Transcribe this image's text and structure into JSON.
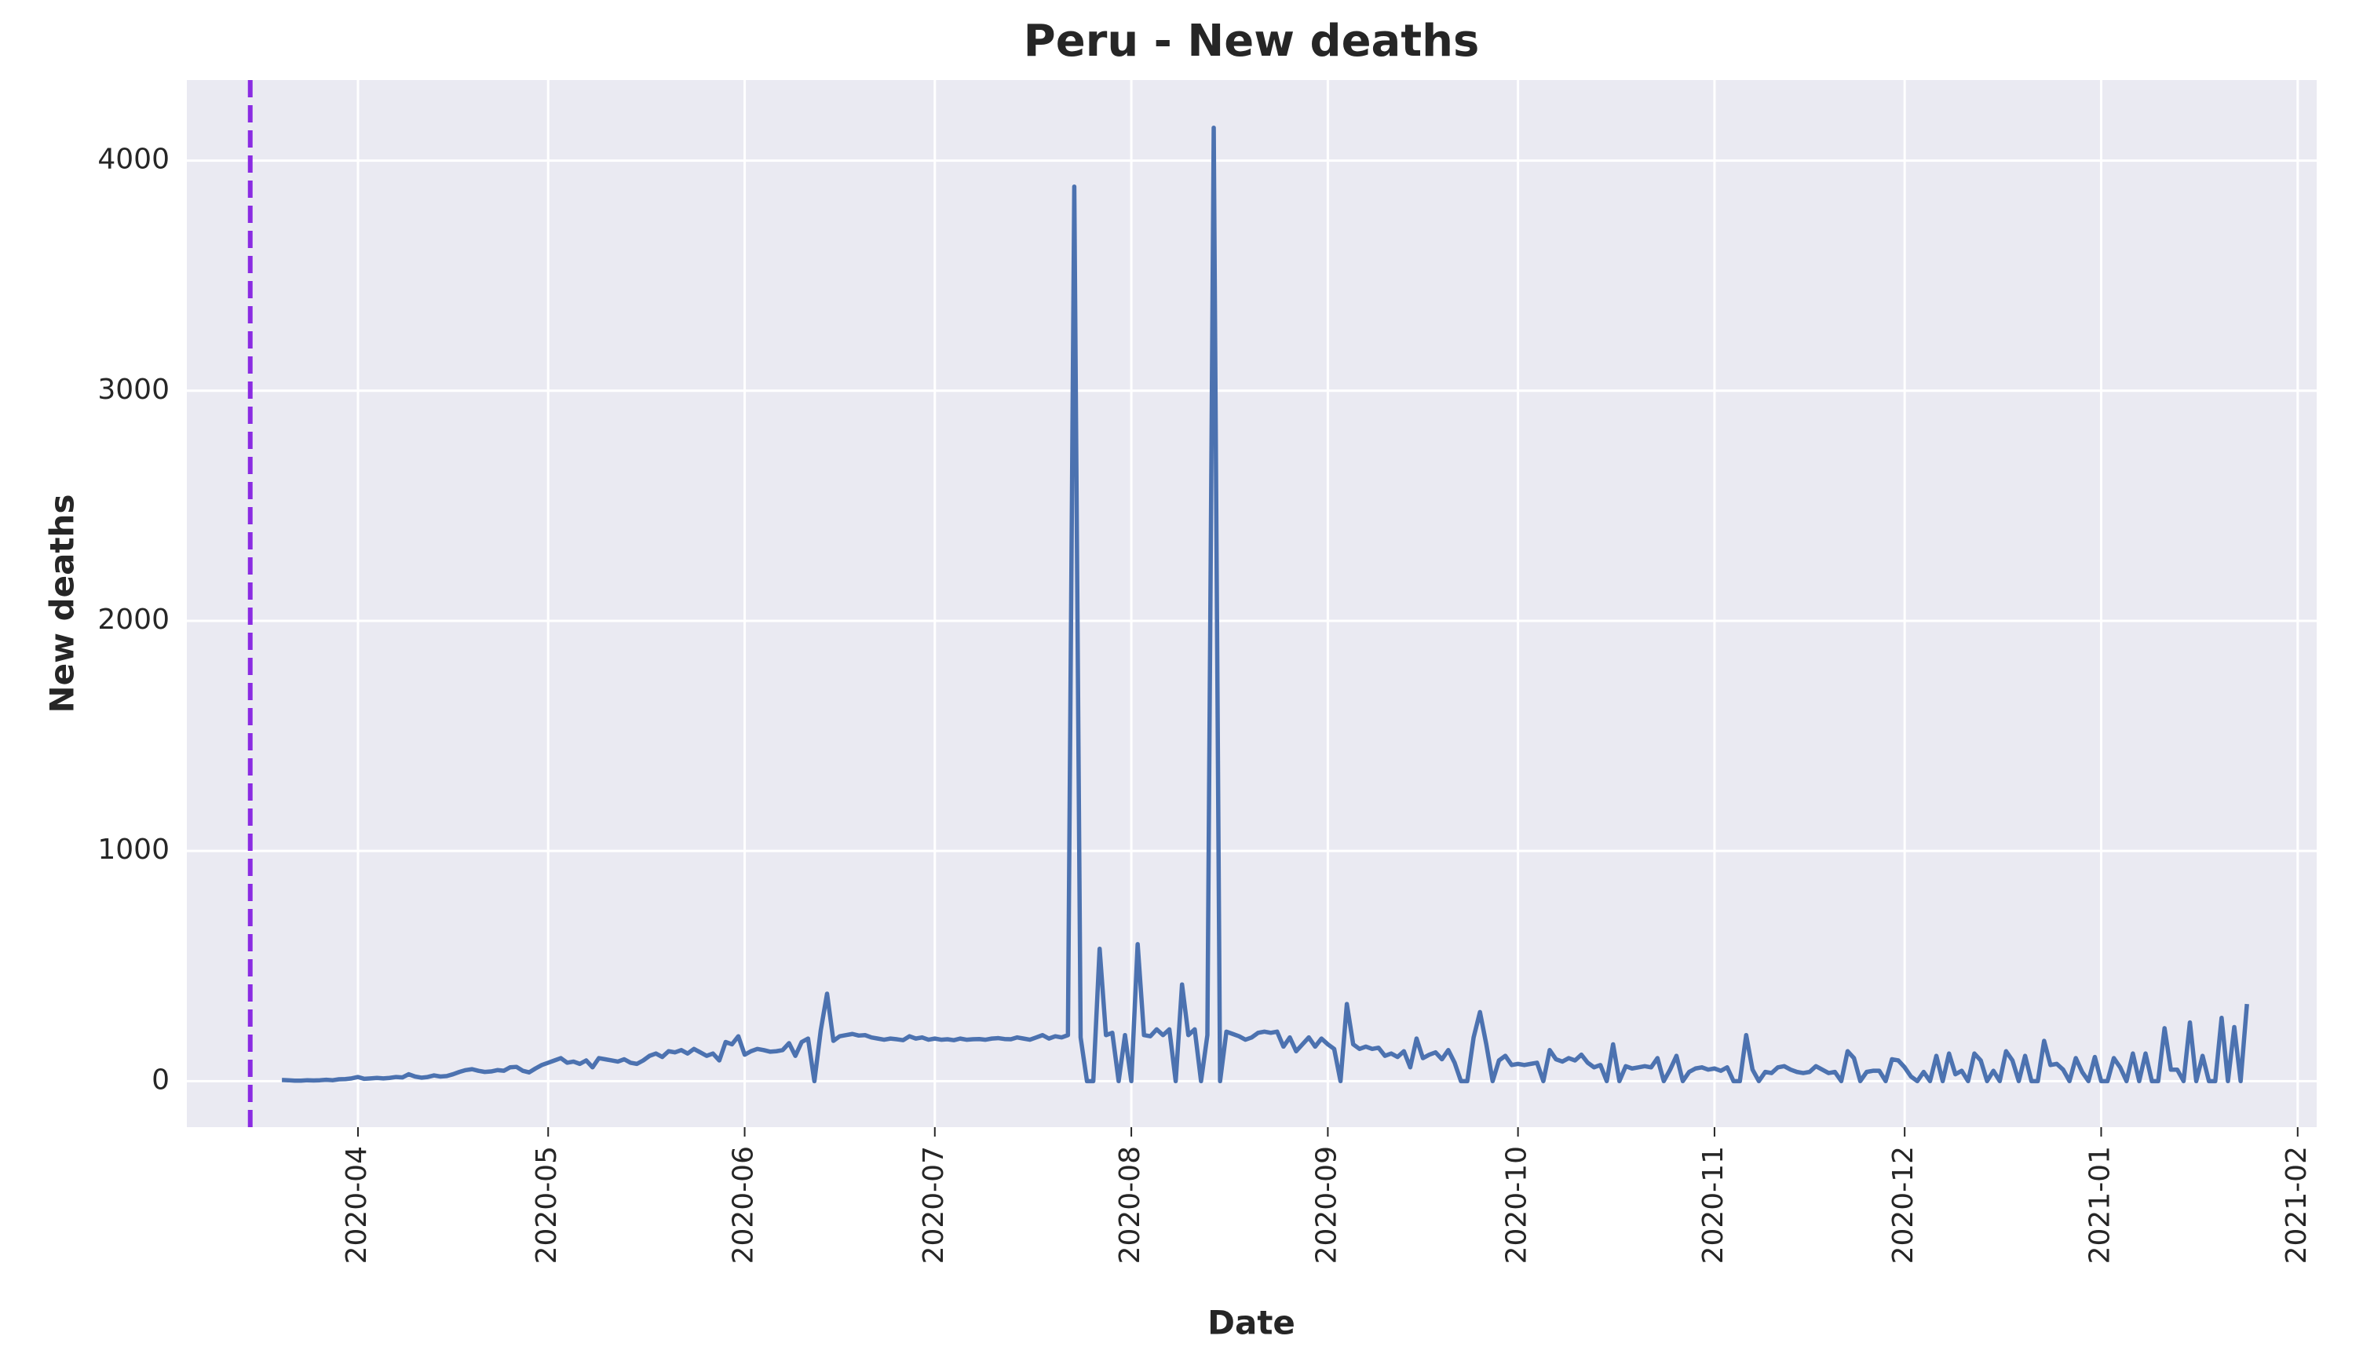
{
  "chart_data": {
    "type": "line",
    "title": "Peru - New deaths",
    "x_label": "Date",
    "y_label": "New deaths",
    "color": "#4c72b0",
    "grid": true,
    "vline": {
      "x": "2020-03-15",
      "color": "#8a2be2",
      "dashed": true
    },
    "xlim": [
      "2020-03-05",
      "2021-02-04"
    ],
    "xticks": [
      "2020-04",
      "2020-05",
      "2020-06",
      "2020-07",
      "2020-08",
      "2020-09",
      "2020-10",
      "2020-11",
      "2020-12",
      "2021-01",
      "2021-02"
    ],
    "ylim": [
      -200,
      4350
    ],
    "yticks": [
      0,
      1000,
      2000,
      3000,
      4000
    ],
    "x": [
      "2020-03-20",
      "2020-03-21",
      "2020-03-22",
      "2020-03-23",
      "2020-03-24",
      "2020-03-25",
      "2020-03-26",
      "2020-03-27",
      "2020-03-28",
      "2020-03-29",
      "2020-03-30",
      "2020-03-31",
      "2020-04-01",
      "2020-04-02",
      "2020-04-03",
      "2020-04-04",
      "2020-04-05",
      "2020-04-06",
      "2020-04-07",
      "2020-04-08",
      "2020-04-09",
      "2020-04-10",
      "2020-04-11",
      "2020-04-12",
      "2020-04-13",
      "2020-04-14",
      "2020-04-15",
      "2020-04-16",
      "2020-04-17",
      "2020-04-18",
      "2020-04-19",
      "2020-04-20",
      "2020-04-21",
      "2020-04-22",
      "2020-04-23",
      "2020-04-24",
      "2020-04-25",
      "2020-04-26",
      "2020-04-27",
      "2020-04-28",
      "2020-04-29",
      "2020-04-30",
      "2020-05-01",
      "2020-05-02",
      "2020-05-03",
      "2020-05-04",
      "2020-05-05",
      "2020-05-06",
      "2020-05-07",
      "2020-05-08",
      "2020-05-09",
      "2020-05-10",
      "2020-05-11",
      "2020-05-12",
      "2020-05-13",
      "2020-05-14",
      "2020-05-15",
      "2020-05-16",
      "2020-05-17",
      "2020-05-18",
      "2020-05-19",
      "2020-05-20",
      "2020-05-21",
      "2020-05-22",
      "2020-05-23",
      "2020-05-24",
      "2020-05-25",
      "2020-05-26",
      "2020-05-27",
      "2020-05-28",
      "2020-05-29",
      "2020-05-30",
      "2020-05-31",
      "2020-06-01",
      "2020-06-02",
      "2020-06-03",
      "2020-06-04",
      "2020-06-05",
      "2020-06-06",
      "2020-06-07",
      "2020-06-08",
      "2020-06-09",
      "2020-06-10",
      "2020-06-11",
      "2020-06-12",
      "2020-06-13",
      "2020-06-14",
      "2020-06-15",
      "2020-06-16",
      "2020-06-17",
      "2020-06-18",
      "2020-06-19",
      "2020-06-20",
      "2020-06-21",
      "2020-06-22",
      "2020-06-23",
      "2020-06-24",
      "2020-06-25",
      "2020-06-26",
      "2020-06-27",
      "2020-06-28",
      "2020-06-29",
      "2020-06-30",
      "2020-07-01",
      "2020-07-02",
      "2020-07-03",
      "2020-07-04",
      "2020-07-05",
      "2020-07-06",
      "2020-07-07",
      "2020-07-08",
      "2020-07-09",
      "2020-07-10",
      "2020-07-11",
      "2020-07-12",
      "2020-07-13",
      "2020-07-14",
      "2020-07-15",
      "2020-07-16",
      "2020-07-17",
      "2020-07-18",
      "2020-07-19",
      "2020-07-20",
      "2020-07-21",
      "2020-07-22",
      "2020-07-23",
      "2020-07-24",
      "2020-07-25",
      "2020-07-26",
      "2020-07-27",
      "2020-07-28",
      "2020-07-29",
      "2020-07-30",
      "2020-07-31",
      "2020-08-01",
      "2020-08-02",
      "2020-08-03",
      "2020-08-04",
      "2020-08-05",
      "2020-08-06",
      "2020-08-07",
      "2020-08-08",
      "2020-08-09",
      "2020-08-10",
      "2020-08-11",
      "2020-08-12",
      "2020-08-13",
      "2020-08-14",
      "2020-08-15",
      "2020-08-16",
      "2020-08-17",
      "2020-08-18",
      "2020-08-19",
      "2020-08-20",
      "2020-08-21",
      "2020-08-22",
      "2020-08-23",
      "2020-08-24",
      "2020-08-25",
      "2020-08-26",
      "2020-08-27",
      "2020-08-28",
      "2020-08-29",
      "2020-08-30",
      "2020-08-31",
      "2020-09-01",
      "2020-09-02",
      "2020-09-03",
      "2020-09-04",
      "2020-09-05",
      "2020-09-06",
      "2020-09-07",
      "2020-09-08",
      "2020-09-09",
      "2020-09-10",
      "2020-09-11",
      "2020-09-12",
      "2020-09-13",
      "2020-09-14",
      "2020-09-15",
      "2020-09-16",
      "2020-09-17",
      "2020-09-18",
      "2020-09-19",
      "2020-09-20",
      "2020-09-21",
      "2020-09-22",
      "2020-09-23",
      "2020-09-24",
      "2020-09-25",
      "2020-09-26",
      "2020-09-27",
      "2020-09-28",
      "2020-09-29",
      "2020-09-30",
      "2020-10-01",
      "2020-10-02",
      "2020-10-03",
      "2020-10-04",
      "2020-10-05",
      "2020-10-06",
      "2020-10-07",
      "2020-10-08",
      "2020-10-09",
      "2020-10-10",
      "2020-10-11",
      "2020-10-12",
      "2020-10-13",
      "2020-10-14",
      "2020-10-15",
      "2020-10-16",
      "2020-10-17",
      "2020-10-18",
      "2020-10-19",
      "2020-10-20",
      "2020-10-21",
      "2020-10-22",
      "2020-10-23",
      "2020-10-24",
      "2020-10-25",
      "2020-10-26",
      "2020-10-27",
      "2020-10-28",
      "2020-10-29",
      "2020-10-30",
      "2020-10-31",
      "2020-11-01",
      "2020-11-02",
      "2020-11-03",
      "2020-11-04",
      "2020-11-05",
      "2020-11-06",
      "2020-11-07",
      "2020-11-08",
      "2020-11-09",
      "2020-11-10",
      "2020-11-11",
      "2020-11-12",
      "2020-11-13",
      "2020-11-14",
      "2020-11-15",
      "2020-11-16",
      "2020-11-17",
      "2020-11-18",
      "2020-11-19",
      "2020-11-20",
      "2020-11-21",
      "2020-11-22",
      "2020-11-23",
      "2020-11-24",
      "2020-11-25",
      "2020-11-26",
      "2020-11-27",
      "2020-11-28",
      "2020-11-29",
      "2020-11-30",
      "2020-12-01",
      "2020-12-02",
      "2020-12-03",
      "2020-12-04",
      "2020-12-05",
      "2020-12-06",
      "2020-12-07",
      "2020-12-08",
      "2020-12-09",
      "2020-12-10",
      "2020-12-11",
      "2020-12-12",
      "2020-12-13",
      "2020-12-14",
      "2020-12-15",
      "2020-12-16",
      "2020-12-17",
      "2020-12-18",
      "2020-12-19",
      "2020-12-20",
      "2020-12-21",
      "2020-12-22",
      "2020-12-23",
      "2020-12-24",
      "2020-12-25",
      "2020-12-26",
      "2020-12-27",
      "2020-12-28",
      "2020-12-29",
      "2020-12-30",
      "2020-12-31",
      "2021-01-01",
      "2021-01-02",
      "2021-01-03",
      "2021-01-04",
      "2021-01-05",
      "2021-01-06",
      "2021-01-07",
      "2021-01-08",
      "2021-01-09",
      "2021-01-10",
      "2021-01-11",
      "2021-01-12",
      "2021-01-13",
      "2021-01-14",
      "2021-01-15",
      "2021-01-16",
      "2021-01-17",
      "2021-01-18",
      "2021-01-19",
      "2021-01-20",
      "2021-01-21",
      "2021-01-22",
      "2021-01-23",
      "2021-01-24"
    ],
    "values": [
      5,
      4,
      2,
      2,
      4,
      3,
      4,
      6,
      4,
      8,
      9,
      12,
      18,
      10,
      12,
      14,
      12,
      14,
      18,
      16,
      30,
      20,
      15,
      18,
      25,
      20,
      22,
      30,
      40,
      48,
      52,
      45,
      40,
      42,
      48,
      45,
      60,
      62,
      45,
      38,
      55,
      70,
      80,
      90,
      100,
      80,
      85,
      75,
      90,
      60,
      100,
      95,
      90,
      85,
      95,
      80,
      75,
      90,
      110,
      120,
      105,
      130,
      125,
      135,
      120,
      140,
      125,
      110,
      120,
      90,
      170,
      160,
      195,
      115,
      130,
      140,
      135,
      128,
      130,
      135,
      165,
      110,
      170,
      185,
      0,
      220,
      380,
      175,
      195,
      200,
      205,
      198,
      200,
      190,
      185,
      180,
      185,
      182,
      178,
      195,
      185,
      190,
      180,
      185,
      180,
      182,
      178,
      185,
      180,
      182,
      183,
      180,
      185,
      187,
      183,
      182,
      190,
      185,
      180,
      190,
      200,
      185,
      195,
      190,
      200,
      3887,
      190,
      0,
      0,
      575,
      200,
      210,
      0,
      200,
      0,
      595,
      200,
      195,
      225,
      200,
      225,
      0,
      420,
      200,
      225,
      0,
      200,
      4143,
      0,
      215,
      205,
      195,
      180,
      190,
      210,
      215,
      210,
      215,
      150,
      190,
      130,
      160,
      190,
      150,
      185,
      160,
      140,
      0,
      335,
      160,
      140,
      150,
      140,
      145,
      110,
      120,
      105,
      130,
      60,
      185,
      100,
      115,
      125,
      95,
      135,
      80,
      0,
      0,
      190,
      300,
      160,
      0,
      90,
      110,
      70,
      75,
      70,
      75,
      80,
      0,
      135,
      95,
      85,
      100,
      90,
      115,
      80,
      60,
      70,
      0,
      160,
      0,
      65,
      55,
      60,
      65,
      60,
      100,
      0,
      50,
      110,
      0,
      40,
      55,
      60,
      50,
      55,
      45,
      60,
      0,
      0,
      200,
      50,
      0,
      40,
      35,
      60,
      65,
      50,
      40,
      35,
      40,
      65,
      50,
      35,
      40,
      0,
      130,
      100,
      0,
      40,
      45,
      45,
      0,
      95,
      90,
      60,
      20,
      0,
      40,
      0,
      110,
      0,
      120,
      30,
      45,
      0,
      120,
      90,
      0,
      45,
      0,
      130,
      90,
      0,
      110,
      0,
      0,
      175,
      70,
      75,
      50,
      0,
      100,
      40,
      0,
      105,
      0,
      0,
      100,
      60,
      0,
      120,
      0,
      120,
      0,
      0,
      230,
      50,
      50,
      0,
      255,
      0,
      110,
      0,
      0,
      275,
      0,
      235,
      0,
      335
    ]
  }
}
